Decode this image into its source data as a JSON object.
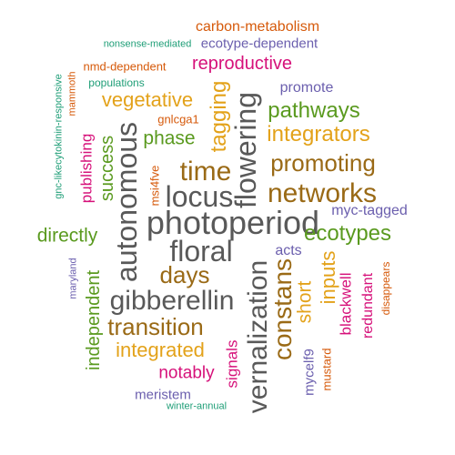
{
  "palette": {
    "gray": "#595959",
    "brown": "#9a6a16",
    "gold": "#e3a21a",
    "green": "#5a9a1f",
    "magenta": "#d6117a",
    "purple": "#6b5fae",
    "orange": "#d65a0b",
    "teal": "#1f9e77"
  },
  "words": [
    "carbon-metabolism",
    "nonsense-mediated",
    "ecotype-dependent",
    "nmd-dependent",
    "reproductive",
    "populations",
    "promote",
    "gnc-likecytokinin-responsive",
    "mammoth",
    "vegetative",
    "tagging",
    "flowering",
    "pathways",
    "gnlcga1",
    "autonomous",
    "integrators",
    "phase",
    "publishing",
    "success",
    "time",
    "promoting",
    "msi4fve",
    "locus",
    "networks",
    "myc-tagged",
    "photoperiod",
    "directly",
    "ecotypes",
    "floral",
    "acts",
    "days",
    "maryland",
    "independent",
    "gibberellin",
    "constans",
    "short",
    "inputs",
    "blackwell",
    "redundant",
    "disappears",
    "vernalization",
    "transition",
    "integrated",
    "mycelf9",
    "mustard",
    "signals",
    "notably",
    "meristem",
    "winter-annual"
  ]
}
